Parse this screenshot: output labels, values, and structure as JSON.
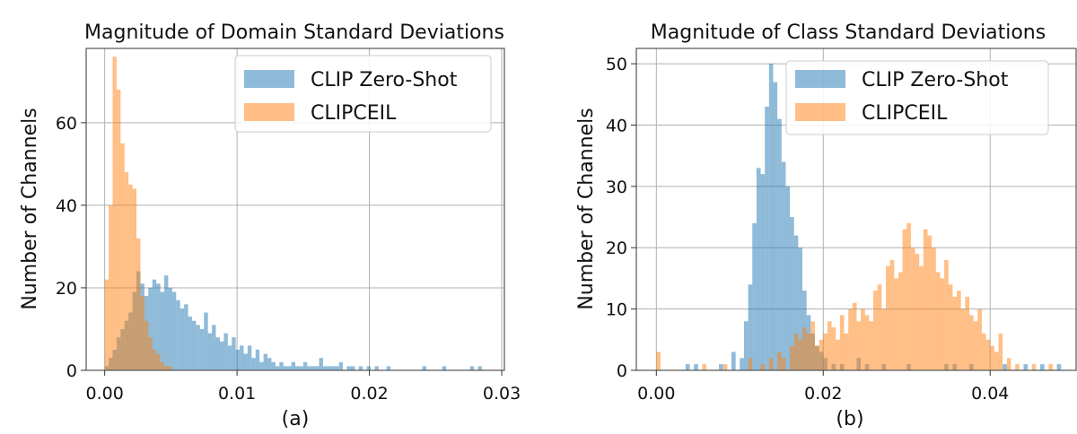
{
  "chart_data": [
    {
      "type": "bar",
      "subtype": "overlapping-histogram",
      "title": "Magnitude of Domain Standard Deviations",
      "xlabel": "(a)",
      "ylabel": "Number of Channels",
      "xlim": [
        -0.0014,
        0.0302
      ],
      "ylim": [
        0,
        78
      ],
      "xticks": [
        "0.00",
        "0.01",
        "0.02",
        "0.03"
      ],
      "xtick_values": [
        0.0,
        0.01,
        0.02,
        0.03
      ],
      "yticks": [
        "0",
        "20",
        "40",
        "60"
      ],
      "ytick_values": [
        0,
        20,
        40,
        60
      ],
      "grid": true,
      "legend_position": "top-right",
      "bin_width": 0.0003,
      "series": [
        {
          "name": "CLIP Zero-Shot",
          "color": "#1f77b4",
          "alpha": 0.5,
          "bins": [
            [
              0.0,
              1
            ],
            [
              0.0003,
              3
            ],
            [
              0.0006,
              5
            ],
            [
              0.0009,
              8
            ],
            [
              0.0012,
              10
            ],
            [
              0.0015,
              12
            ],
            [
              0.0018,
              14
            ],
            [
              0.0021,
              19
            ],
            [
              0.0024,
              24
            ],
            [
              0.0027,
              21
            ],
            [
              0.003,
              18
            ],
            [
              0.0033,
              20
            ],
            [
              0.0036,
              22
            ],
            [
              0.0039,
              21
            ],
            [
              0.0042,
              19
            ],
            [
              0.0045,
              23
            ],
            [
              0.0048,
              20
            ],
            [
              0.0051,
              19
            ],
            [
              0.0054,
              17
            ],
            [
              0.0057,
              15
            ],
            [
              0.006,
              16
            ],
            [
              0.0063,
              13
            ],
            [
              0.0066,
              12
            ],
            [
              0.0069,
              11
            ],
            [
              0.0072,
              10
            ],
            [
              0.0075,
              14
            ],
            [
              0.0078,
              9
            ],
            [
              0.0081,
              11
            ],
            [
              0.0084,
              8
            ],
            [
              0.0087,
              7
            ],
            [
              0.009,
              9
            ],
            [
              0.0093,
              6
            ],
            [
              0.0096,
              8
            ],
            [
              0.0099,
              5
            ],
            [
              0.0102,
              6
            ],
            [
              0.0105,
              4
            ],
            [
              0.0108,
              6
            ],
            [
              0.0111,
              3
            ],
            [
              0.0114,
              5
            ],
            [
              0.0117,
              2
            ],
            [
              0.012,
              4
            ],
            [
              0.0123,
              3
            ],
            [
              0.0126,
              2
            ],
            [
              0.0129,
              1
            ],
            [
              0.0132,
              2
            ],
            [
              0.0135,
              1
            ],
            [
              0.0138,
              1
            ],
            [
              0.0141,
              2
            ],
            [
              0.0144,
              1
            ],
            [
              0.0147,
              1
            ],
            [
              0.015,
              2
            ],
            [
              0.0153,
              1
            ],
            [
              0.0156,
              1
            ],
            [
              0.0159,
              1
            ],
            [
              0.0162,
              3
            ],
            [
              0.0165,
              1
            ],
            [
              0.0168,
              1
            ],
            [
              0.0171,
              1
            ],
            [
              0.0174,
              1
            ],
            [
              0.0177,
              2
            ],
            [
              0.0183,
              1
            ],
            [
              0.0186,
              1
            ],
            [
              0.0192,
              1
            ],
            [
              0.0198,
              1
            ],
            [
              0.0204,
              1
            ],
            [
              0.0213,
              1
            ],
            [
              0.024,
              1
            ],
            [
              0.0255,
              1
            ],
            [
              0.0276,
              1
            ],
            [
              0.0282,
              1
            ]
          ]
        },
        {
          "name": "CLIPCEIL",
          "color": "#ff7f0e",
          "alpha": 0.5,
          "bins": [
            [
              0.0,
              22
            ],
            [
              0.0003,
              40
            ],
            [
              0.0006,
              76
            ],
            [
              0.0009,
              68
            ],
            [
              0.0012,
              55
            ],
            [
              0.0015,
              48
            ],
            [
              0.0018,
              45
            ],
            [
              0.0021,
              44
            ],
            [
              0.0024,
              32
            ],
            [
              0.0027,
              18
            ],
            [
              0.003,
              12
            ],
            [
              0.0033,
              8
            ],
            [
              0.0036,
              5
            ],
            [
              0.0039,
              4
            ],
            [
              0.0042,
              2
            ],
            [
              0.0045,
              1
            ],
            [
              0.0048,
              1
            ]
          ]
        }
      ]
    },
    {
      "type": "bar",
      "subtype": "overlapping-histogram",
      "title": "Magnitude of Class Standard Deviations",
      "xlabel": "(b)",
      "ylabel": "Number of Channels",
      "xlim": [
        -0.0024,
        0.0503
      ],
      "ylim": [
        0,
        52.5
      ],
      "xticks": [
        "0.00",
        "0.02",
        "0.04"
      ],
      "xtick_values": [
        0.0,
        0.02,
        0.04
      ],
      "yticks": [
        "0",
        "10",
        "20",
        "30",
        "40",
        "50"
      ],
      "ytick_values": [
        0,
        10,
        20,
        30,
        40,
        50
      ],
      "grid": true,
      "legend_position": "top-right",
      "bin_width": 0.0005,
      "series": [
        {
          "name": "CLIP Zero-Shot",
          "color": "#1f77b4",
          "alpha": 0.5,
          "bins": [
            [
              0.0035,
              1
            ],
            [
              0.0045,
              1
            ],
            [
              0.0075,
              1
            ],
            [
              0.009,
              3
            ],
            [
              0.01,
              2
            ],
            [
              0.0105,
              8
            ],
            [
              0.011,
              14
            ],
            [
              0.0115,
              24
            ],
            [
              0.012,
              33
            ],
            [
              0.0125,
              32
            ],
            [
              0.013,
              43
            ],
            [
              0.0135,
              50
            ],
            [
              0.014,
              47
            ],
            [
              0.0145,
              41
            ],
            [
              0.015,
              34
            ],
            [
              0.0155,
              30
            ],
            [
              0.016,
              25
            ],
            [
              0.0165,
              22
            ],
            [
              0.017,
              20
            ],
            [
              0.0175,
              13
            ],
            [
              0.018,
              9
            ],
            [
              0.0185,
              6
            ],
            [
              0.019,
              4
            ],
            [
              0.0195,
              3
            ],
            [
              0.02,
              2
            ],
            [
              0.021,
              1
            ],
            [
              0.022,
              1
            ],
            [
              0.024,
              2
            ],
            [
              0.025,
              1
            ],
            [
              0.027,
              1
            ],
            [
              0.03,
              1
            ],
            [
              0.0345,
              1
            ],
            [
              0.0355,
              1
            ],
            [
              0.0375,
              1
            ],
            [
              0.0415,
              1
            ],
            [
              0.044,
              1
            ],
            [
              0.046,
              1
            ],
            [
              0.048,
              1
            ]
          ]
        },
        {
          "name": "CLIPCEIL",
          "color": "#ff7f0e",
          "alpha": 0.5,
          "bins": [
            [
              0.0,
              3
            ],
            [
              0.0055,
              1
            ],
            [
              0.008,
              1
            ],
            [
              0.011,
              2
            ],
            [
              0.0125,
              1
            ],
            [
              0.0135,
              2
            ],
            [
              0.0145,
              3
            ],
            [
              0.015,
              2
            ],
            [
              0.016,
              4
            ],
            [
              0.0165,
              6
            ],
            [
              0.017,
              5
            ],
            [
              0.0175,
              7
            ],
            [
              0.018,
              6
            ],
            [
              0.0185,
              8
            ],
            [
              0.019,
              4
            ],
            [
              0.0195,
              5
            ],
            [
              0.02,
              6
            ],
            [
              0.0205,
              8
            ],
            [
              0.021,
              7
            ],
            [
              0.0215,
              5
            ],
            [
              0.022,
              9
            ],
            [
              0.0225,
              6
            ],
            [
              0.023,
              10
            ],
            [
              0.0235,
              11
            ],
            [
              0.024,
              8
            ],
            [
              0.0245,
              10
            ],
            [
              0.025,
              9
            ],
            [
              0.0255,
              8
            ],
            [
              0.026,
              13
            ],
            [
              0.0265,
              14
            ],
            [
              0.027,
              10
            ],
            [
              0.0275,
              17
            ],
            [
              0.028,
              18
            ],
            [
              0.0285,
              15
            ],
            [
              0.029,
              16
            ],
            [
              0.0295,
              23
            ],
            [
              0.03,
              24
            ],
            [
              0.0305,
              20
            ],
            [
              0.031,
              19
            ],
            [
              0.0315,
              17
            ],
            [
              0.032,
              23
            ],
            [
              0.0325,
              22
            ],
            [
              0.033,
              20
            ],
            [
              0.0335,
              16
            ],
            [
              0.034,
              15
            ],
            [
              0.0345,
              18
            ],
            [
              0.035,
              14
            ],
            [
              0.0355,
              12
            ],
            [
              0.036,
              13
            ],
            [
              0.0365,
              10
            ],
            [
              0.037,
              12
            ],
            [
              0.0375,
              9
            ],
            [
              0.038,
              8
            ],
            [
              0.0385,
              10
            ],
            [
              0.039,
              6
            ],
            [
              0.0395,
              5
            ],
            [
              0.04,
              4
            ],
            [
              0.0405,
              3
            ],
            [
              0.041,
              6
            ],
            [
              0.042,
              2
            ],
            [
              0.043,
              1
            ],
            [
              0.045,
              1
            ],
            [
              0.047,
              1
            ]
          ]
        }
      ]
    }
  ]
}
